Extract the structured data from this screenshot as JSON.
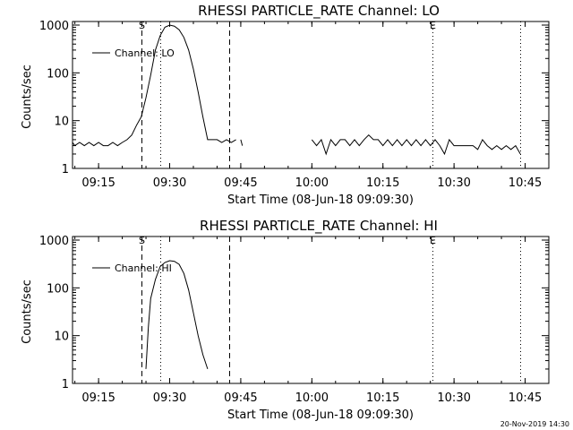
{
  "footer": {
    "timestamp": "20-Nov-2019 14:30"
  },
  "chart_data": [
    {
      "type": "line",
      "title": "RHESSI PARTICLE_RATE Channel: LO",
      "xlabel": "Start Time (08-Jun-18 09:09:30)",
      "ylabel": "Counts/sec",
      "yscale": "log",
      "xlim": [
        "09:09:30",
        "10:50:00"
      ],
      "ylim": [
        1,
        1000
      ],
      "x_ticks": [
        "09:15",
        "09:30",
        "09:45",
        "10:00",
        "10:15",
        "10:30",
        "10:45"
      ],
      "y_ticks": [
        "1",
        "10",
        "100",
        "1000"
      ],
      "markers": [
        {
          "label": "S",
          "time": "09:24:00",
          "style": "dashed",
          "labeled": true
        },
        {
          "label": "",
          "time": "09:28:00",
          "style": "dotted",
          "labeled": false
        },
        {
          "label": "",
          "time": "09:42:30",
          "style": "dashed",
          "labeled": false
        },
        {
          "label": "E",
          "time": "10:25:30",
          "style": "dotted",
          "labeled": true
        },
        {
          "label": "",
          "time": "10:44:00",
          "style": "dotted",
          "labeled": false
        }
      ],
      "legend": {
        "position": "top-left",
        "label": "Channel: LO"
      },
      "series": [
        {
          "name": "Channel: LO",
          "segments": [
            {
              "x": [
                "09:09:30",
                "09:10:00",
                "09:11:00",
                "09:12:00",
                "09:13:00",
                "09:14:00",
                "09:15:00",
                "09:16:00",
                "09:17:00",
                "09:18:00",
                "09:19:00",
                "09:20:00",
                "09:21:00",
                "09:22:00",
                "09:23:00",
                "09:24:00",
                "09:25:00",
                "09:26:00",
                "09:27:00",
                "09:28:00",
                "09:29:00",
                "09:30:00",
                "09:31:00",
                "09:32:00",
                "09:33:00",
                "09:34:00",
                "09:35:00",
                "09:36:00",
                "09:37:00",
                "09:38:00",
                "09:39:00",
                "09:40:00",
                "09:41:00",
                "09:42:00",
                "09:43:00",
                "09:44:00"
              ],
              "y": [
                3.5,
                3,
                3.5,
                3,
                3.5,
                3,
                3.5,
                3,
                3,
                3.5,
                3,
                3.5,
                4,
                5,
                8,
                12,
                30,
                90,
                300,
                600,
                900,
                1000,
                950,
                800,
                550,
                300,
                120,
                40,
                12,
                4,
                4,
                4,
                3.5,
                4,
                3.5,
                4
              ]
            },
            {
              "x": [
                "09:45:00",
                "09:45:20"
              ],
              "y": [
                4,
                3
              ]
            },
            {
              "x": [
                "10:00:00",
                "10:01:00",
                "10:02:00",
                "10:03:00",
                "10:04:00",
                "10:05:00",
                "10:06:00",
                "10:07:00",
                "10:08:00",
                "10:09:00",
                "10:10:00",
                "10:11:00",
                "10:12:00",
                "10:13:00",
                "10:14:00",
                "10:15:00",
                "10:16:00",
                "10:17:00",
                "10:18:00",
                "10:19:00",
                "10:20:00",
                "10:21:00",
                "10:22:00",
                "10:23:00",
                "10:24:00",
                "10:25:00",
                "10:26:00",
                "10:27:00",
                "10:28:00",
                "10:29:00",
                "10:30:00",
                "10:31:00",
                "10:32:00",
                "10:33:00",
                "10:34:00",
                "10:35:00",
                "10:36:00",
                "10:37:00",
                "10:38:00",
                "10:39:00",
                "10:40:00",
                "10:41:00",
                "10:42:00",
                "10:43:00",
                "10:44:00"
              ],
              "y": [
                4,
                3,
                4,
                2,
                4,
                3,
                4,
                4,
                3,
                4,
                3,
                4,
                5,
                4,
                4,
                3,
                4,
                3,
                4,
                3,
                4,
                3,
                4,
                3,
                4,
                3,
                4,
                3,
                2,
                4,
                3,
                3,
                3,
                3,
                3,
                2.5,
                4,
                3,
                2.5,
                3,
                2.5,
                3,
                2.5,
                3,
                2
              ]
            }
          ]
        }
      ]
    },
    {
      "type": "line",
      "title": "RHESSI PARTICLE_RATE Channel: HI",
      "xlabel": "Start Time (08-Jun-18 09:09:30)",
      "ylabel": "Counts/sec",
      "yscale": "log",
      "xlim": [
        "09:09:30",
        "10:50:00"
      ],
      "ylim": [
        1,
        1000
      ],
      "x_ticks": [
        "09:15",
        "09:30",
        "09:45",
        "10:00",
        "10:15",
        "10:30",
        "10:45"
      ],
      "y_ticks": [
        "1",
        "10",
        "100",
        "1000"
      ],
      "markers": [
        {
          "label": "S",
          "time": "09:24:00",
          "style": "dashed",
          "labeled": true
        },
        {
          "label": "",
          "time": "09:28:00",
          "style": "dotted",
          "labeled": false
        },
        {
          "label": "",
          "time": "09:42:30",
          "style": "dashed",
          "labeled": false
        },
        {
          "label": "E",
          "time": "10:25:30",
          "style": "dotted",
          "labeled": true
        },
        {
          "label": "",
          "time": "10:44:00",
          "style": "dotted",
          "labeled": false
        }
      ],
      "legend": {
        "position": "top-left",
        "label": "Channel: HI"
      },
      "series": [
        {
          "name": "Channel: HI",
          "segments": [
            {
              "x": [
                "09:25:00",
                "09:25:30",
                "09:26:00",
                "09:27:00",
                "09:28:00",
                "09:29:00",
                "09:30:00",
                "09:31:00",
                "09:32:00",
                "09:33:00",
                "09:34:00",
                "09:35:00",
                "09:36:00",
                "09:37:00",
                "09:38:00"
              ],
              "y": [
                2,
                15,
                60,
                150,
                280,
                340,
                370,
                360,
                310,
                200,
                90,
                30,
                10,
                4,
                2
              ]
            }
          ]
        }
      ]
    }
  ]
}
